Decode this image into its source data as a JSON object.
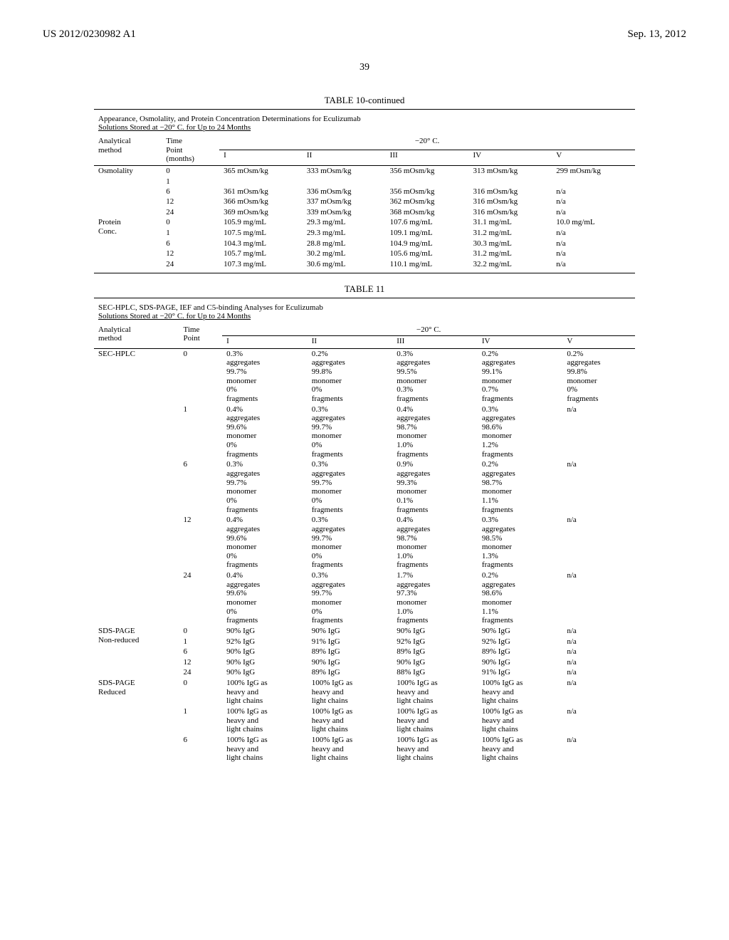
{
  "header": {
    "left": "US 2012/0230982 A1",
    "right": "Sep. 13, 2012",
    "page": "39"
  },
  "table10": {
    "caption": "TABLE 10-continued",
    "subtitle1": "Appearance, Osmolality, and Protein Concentration Determinations for Eculizumab",
    "subtitle2": "Solutions Stored at −20° C. for Up to 24 Months",
    "h_method": "Analytical\nmethod",
    "h_time": "Time\nPoint\n(months)",
    "h_group": "−20° C.",
    "cols": [
      "I",
      "II",
      "III",
      "IV",
      "V"
    ],
    "groups": [
      {
        "label": "Osmolality",
        "rows": [
          {
            "tp": "0",
            "v": [
              "365 mOsm/kg",
              "333 mOsm/kg",
              "356 mOsm/kg",
              "313 mOsm/kg",
              "299 mOsm/kg"
            ]
          },
          {
            "tp": "1",
            "v": [
              "",
              "",
              "",
              "",
              ""
            ]
          },
          {
            "tp": "6",
            "v": [
              "361 mOsm/kg",
              "336 mOsm/kg",
              "356 mOsm/kg",
              "316 mOsm/kg",
              "n/a"
            ]
          },
          {
            "tp": "12",
            "v": [
              "366 mOsm/kg",
              "337 mOsm/kg",
              "362 mOsm/kg",
              "316 mOsm/kg",
              "n/a"
            ]
          },
          {
            "tp": "24",
            "v": [
              "369 mOsm/kg",
              "339 mOsm/kg",
              "368 mOsm/kg",
              "316 mOsm/kg",
              "n/a"
            ]
          }
        ]
      },
      {
        "label": "Protein\nConc.",
        "rows": [
          {
            "tp": "0",
            "v": [
              "105.9 mg/mL",
              "29.3 mg/mL",
              "107.6 mg/mL",
              "31.1 mg/mL",
              "10.0 mg/mL"
            ]
          },
          {
            "tp": "1",
            "v": [
              "107.5 mg/mL",
              "29.3 mg/mL",
              "109.1 mg/mL",
              "31.2 mg/mL",
              "n/a"
            ]
          },
          {
            "tp": "6",
            "v": [
              "104.3 mg/mL",
              "28.8 mg/mL",
              "104.9 mg/mL",
              "30.3 mg/mL",
              "n/a"
            ]
          },
          {
            "tp": "12",
            "v": [
              "105.7 mg/mL",
              "30.2 mg/mL",
              "105.6 mg/mL",
              "31.2 mg/mL",
              "n/a"
            ]
          },
          {
            "tp": "24",
            "v": [
              "107.3 mg/mL",
              "30.6 mg/mL",
              "110.1 mg/mL",
              "32.2 mg/mL",
              "n/a"
            ]
          }
        ]
      }
    ]
  },
  "table11": {
    "caption": "TABLE 11",
    "subtitle1": "SEC-HPLC, SDS-PAGE, IEF and C5-binding Analyses for Eculizumab",
    "subtitle2": "Solutions Stored at −20° C. for Up to 24 Months",
    "h_method": "Analytical\nmethod",
    "h_time": "Time\nPoint",
    "h_group": "−20° C.",
    "cols": [
      "I",
      "II",
      "III",
      "IV",
      "V"
    ],
    "groups": [
      {
        "label": "SEC-HPLC",
        "rows": [
          {
            "tp": "0",
            "v": [
              "0.3%\naggregates\n99.7%\nmonomer\n0%\nfragments",
              "0.2%\naggregates\n99.8%\nmonomer\n0%\nfragments",
              "0.3%\naggregates\n99.5%\nmonomer\n0.3%\nfragments",
              "0.2%\naggregates\n99.1%\nmonomer\n0.7%\nfragments",
              "0.2%\naggregates\n99.8%\nmonomer\n0%\nfragments"
            ]
          },
          {
            "tp": "1",
            "v": [
              "0.4%\naggregates\n99.6%\nmonomer\n0%\nfragments",
              "0.3%\naggregates\n99.7%\nmonomer\n0%\nfragments",
              "0.4%\naggregates\n98.7%\nmonomer\n1.0%\nfragments",
              "0.3%\naggregates\n98.6%\nmonomer\n1.2%\nfragments",
              "n/a"
            ]
          },
          {
            "tp": "6",
            "v": [
              "0.3%\naggregates\n99.7%\nmonomer\n0%\nfragments",
              "0.3%\naggregates\n99.7%\nmonomer\n0%\nfragments",
              "0.9%\naggregates\n99.3%\nmonomer\n0.1%\nfragments",
              "0.2%\naggregates\n98.7%\nmonomer\n1.1%\nfragments",
              "n/a"
            ]
          },
          {
            "tp": "12",
            "v": [
              "0.4%\naggregates\n99.6%\nmonomer\n0%\nfragments",
              "0.3%\naggregates\n99.7%\nmonomer\n0%\nfragments",
              "0.4%\naggregates\n98.7%\nmonomer\n1.0%\nfragments",
              "0.3%\naggregates\n98.5%\nmonomer\n1.3%\nfragments",
              "n/a"
            ]
          },
          {
            "tp": "24",
            "v": [
              "0.4%\naggregates\n99.6%\nmonomer\n0%\nfragments",
              "0.3%\naggregates\n99.7%\nmonomer\n0%\nfragments",
              "1.7%\naggregates\n97.3%\nmonomer\n1.0%\nfragments",
              "0.2%\naggregates\n98.6%\nmonomer\n1.1%\nfragments",
              "n/a"
            ]
          }
        ]
      },
      {
        "label": "SDS-PAGE\nNon-reduced",
        "rows": [
          {
            "tp": "0",
            "v": [
              "90% IgG",
              "90% IgG",
              "90% IgG",
              "90% IgG",
              "n/a"
            ]
          },
          {
            "tp": "1",
            "v": [
              "92% IgG",
              "91% IgG",
              "92% IgG",
              "92% IgG",
              "n/a"
            ]
          },
          {
            "tp": "6",
            "v": [
              "90% IgG",
              "89% IgG",
              "89% IgG",
              "89% IgG",
              "n/a"
            ]
          },
          {
            "tp": "12",
            "v": [
              "90% IgG",
              "90% IgG",
              "90% IgG",
              "90% IgG",
              "n/a"
            ]
          },
          {
            "tp": "24",
            "v": [
              "90% IgG",
              "89% IgG",
              "88% IgG",
              "91% IgG",
              "n/a"
            ]
          }
        ]
      },
      {
        "label": "SDS-PAGE\nReduced",
        "rows": [
          {
            "tp": "0",
            "v": [
              "100% IgG as\nheavy and\nlight chains",
              "100% IgG as\nheavy and\nlight chains",
              "100% IgG as\nheavy and\nlight chains",
              "100% IgG as\nheavy and\nlight chains",
              "n/a"
            ]
          },
          {
            "tp": "1",
            "v": [
              "100% IgG as\nheavy and\nlight chains",
              "100% IgG as\nheavy and\nlight chains",
              "100% IgG as\nheavy and\nlight chains",
              "100% IgG as\nheavy and\nlight chains",
              "n/a"
            ]
          },
          {
            "tp": "6",
            "v": [
              "100% IgG as\nheavy and\nlight chains",
              "100% IgG as\nheavy and\nlight chains",
              "100% IgG as\nheavy and\nlight chains",
              "100% IgG as\nheavy and\nlight chains",
              "n/a"
            ]
          }
        ]
      }
    ]
  }
}
